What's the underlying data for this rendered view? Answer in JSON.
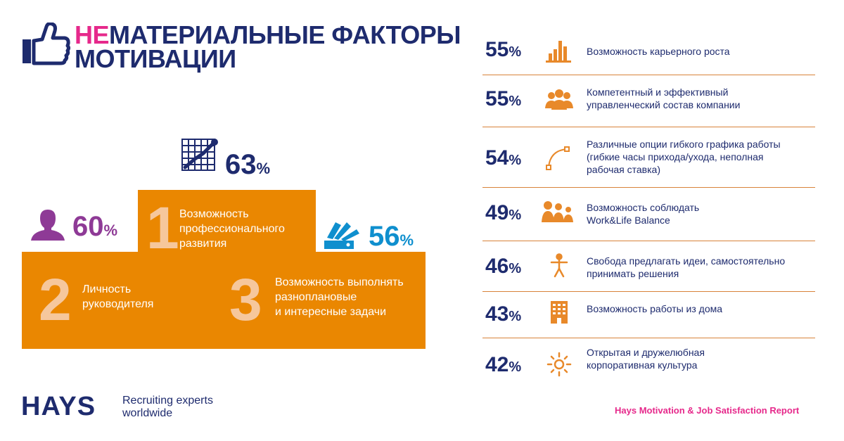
{
  "header": {
    "title_highlight": "НЕ",
    "title_line1_rest": "МАТЕРИАЛЬНЫЕ ФАКТОРЫ",
    "title_line2": "МОТИВАЦИИ"
  },
  "podium": {
    "first": {
      "rank": "1",
      "label_lines": [
        "Возможность",
        "профессионального",
        "развития"
      ],
      "value": "63",
      "unit": "%",
      "icon": "growth-chart-icon",
      "color": "#1e2b6e"
    },
    "second": {
      "rank": "2",
      "label_lines": [
        "Личность",
        "руководителя"
      ],
      "value": "60",
      "unit": "%",
      "icon": "person-icon",
      "color": "#8e3a96"
    },
    "third": {
      "rank": "3",
      "label_lines": [
        "Возможность выполнять",
        "разноплановые",
        "и интересные задачи"
      ],
      "value": "56",
      "unit": "%",
      "icon": "swatch-fan-icon",
      "color": "#0f8fce"
    }
  },
  "factors": [
    {
      "value": "55",
      "unit": "%",
      "icon": "bar-chart-icon",
      "label_lines": [
        "Возможность карьерного роста"
      ]
    },
    {
      "value": "55",
      "unit": "%",
      "icon": "team-icon",
      "label_lines": [
        "Компетентный и эффективный",
        "управленческий состав компании"
      ]
    },
    {
      "value": "54",
      "unit": "%",
      "icon": "curve-icon",
      "label_lines": [
        "Различные опции гибкого графика работы",
        "(гибкие часы прихода/ухода, неполная",
        "рабочая ставка)"
      ]
    },
    {
      "value": "49",
      "unit": "%",
      "icon": "family-icon",
      "label_lines": [
        "Возможность соблюдать",
        "Work&Life Balance"
      ]
    },
    {
      "value": "46",
      "unit": "%",
      "icon": "person-arms-icon",
      "label_lines": [
        "Свобода предлагать идеи, самостоятельно",
        "принимать решения"
      ]
    },
    {
      "value": "43",
      "unit": "%",
      "icon": "building-icon",
      "label_lines": [
        "Возможность работы из дома"
      ]
    },
    {
      "value": "42",
      "unit": "%",
      "icon": "sun-icon",
      "label_lines": [
        "Открытая и дружелюбная",
        "корпоративная культура"
      ]
    }
  ],
  "footer": {
    "logo": "HAYS",
    "tagline_lines": [
      "Recruiting experts",
      "worldwide"
    ],
    "report": "Hays Motivation & Job Satisfaction Report"
  },
  "colors": {
    "navy": "#1e2b6e",
    "orange": "#ea8701",
    "pink": "#e6298b",
    "purple": "#8e3a96",
    "blue": "#0f8fce",
    "icon_orange": "#e8892a"
  }
}
